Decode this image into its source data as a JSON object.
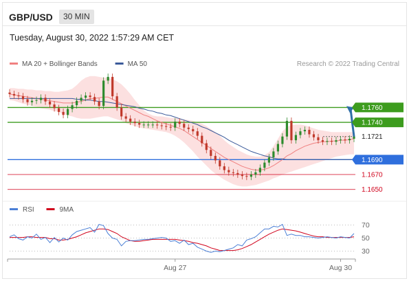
{
  "header": {
    "symbol": "GBP/USD",
    "timeframe": "30 MIN",
    "datetime": "Tuesday, August 30, 2022 1:57:29 AM CET"
  },
  "chart_data": {
    "type": "candlestick",
    "price_panel": {
      "legend": [
        {
          "name": "MA 20 + Bollinger Bands",
          "color": "#f08080"
        },
        {
          "name": "MA 50",
          "color": "#3a5a9a"
        }
      ],
      "credit": "Research © 2022 Trading Central",
      "ylim": [
        1.1635,
        1.1812
      ],
      "levels": [
        {
          "price": 1.176,
          "label": "1.1760",
          "kind": "resistance",
          "color": "#3d9c1e"
        },
        {
          "price": 1.174,
          "label": "1.1740",
          "kind": "resistance",
          "color": "#3d9c1e"
        },
        {
          "price": 1.1721,
          "label": "1.1721",
          "kind": "last",
          "color": "#222222"
        },
        {
          "price": 1.169,
          "label": "1.1690",
          "kind": "pivot",
          "color": "#2f6fdd"
        },
        {
          "price": 1.167,
          "label": "1.1670",
          "kind": "support",
          "color": "#d0021b"
        },
        {
          "price": 1.165,
          "label": "1.1650",
          "kind": "support",
          "color": "#d0021b"
        }
      ],
      "closes": [
        1.1778,
        1.1776,
        1.1775,
        1.1771,
        1.1767,
        1.1769,
        1.177,
        1.1773,
        1.1768,
        1.1764,
        1.1759,
        1.1754,
        1.175,
        1.1758,
        1.1763,
        1.1769,
        1.1773,
        1.1776,
        1.1774,
        1.1768,
        1.1762,
        1.1796,
        1.1801,
        1.1775,
        1.176,
        1.1748,
        1.1745,
        1.1741,
        1.1739,
        1.1737,
        1.1737,
        1.1737,
        1.1737,
        1.1736,
        1.1735,
        1.1734,
        1.1733,
        1.1741,
        1.1738,
        1.1733,
        1.1731,
        1.1728,
        1.1722,
        1.1712,
        1.1703,
        1.1695,
        1.1689,
        1.1681,
        1.1676,
        1.1673,
        1.1672,
        1.167,
        1.1668,
        1.1667,
        1.167,
        1.1673,
        1.1679,
        1.1686,
        1.1693,
        1.1701,
        1.1711,
        1.1721,
        1.1742,
        1.1716,
        1.1723,
        1.1728,
        1.173,
        1.1724,
        1.172,
        1.1716,
        1.1714,
        1.1715,
        1.1714,
        1.1716,
        1.1717,
        1.1716,
        1.1718,
        1.1721
      ],
      "ma20": [
        1.1778,
        1.1777,
        1.1776,
        1.1775,
        1.1774,
        1.1773,
        1.1772,
        1.1771,
        1.177,
        1.1769,
        1.1768,
        1.1767,
        1.1766,
        1.1766,
        1.1766,
        1.1767,
        1.1768,
        1.177,
        1.1772,
        1.1772,
        1.1773,
        1.1774,
        1.1774,
        1.1771,
        1.1768,
        1.1765,
        1.1762,
        1.1759,
        1.1756,
        1.1753,
        1.175,
        1.1748,
        1.1745,
        1.1742,
        1.174,
        1.1738,
        1.1736,
        1.1734,
        1.1732,
        1.1729,
        1.1725,
        1.1721,
        1.1717,
        1.1713,
        1.1709,
        1.1705,
        1.1701,
        1.1697,
        1.1693,
        1.169,
        1.1687,
        1.1684,
        1.1681,
        1.1679,
        1.1677,
        1.1676,
        1.1676,
        1.1677,
        1.1679,
        1.1682,
        1.1686,
        1.169,
        1.1695,
        1.1698,
        1.1702,
        1.1705,
        1.1708,
        1.171,
        1.1712,
        1.1713,
        1.1714,
        1.1714,
        1.1715,
        1.1715,
        1.1716,
        1.1716,
        1.1717,
        1.1718
      ],
      "bb_upper": [
        1.1786,
        1.1786,
        1.1785,
        1.1785,
        1.1784,
        1.1784,
        1.1783,
        1.1783,
        1.1782,
        1.1782,
        1.1781,
        1.1781,
        1.1782,
        1.1783,
        1.1785,
        1.179,
        1.1796,
        1.18,
        1.1802,
        1.1802,
        1.1801,
        1.18,
        1.18,
        1.1798,
        1.1795,
        1.1791,
        1.1785,
        1.1778,
        1.177,
        1.1763,
        1.1756,
        1.1752,
        1.1749,
        1.1748,
        1.1748,
        1.1747,
        1.1746,
        1.1746,
        1.1745,
        1.1744,
        1.1743,
        1.1742,
        1.174,
        1.1738,
        1.1735,
        1.1731,
        1.1727,
        1.1722,
        1.1716,
        1.1711,
        1.1707,
        1.1703,
        1.17,
        1.1697,
        1.1695,
        1.1694,
        1.1694,
        1.1696,
        1.17,
        1.1708,
        1.1718,
        1.1728,
        1.1734,
        1.1736,
        1.1737,
        1.1737,
        1.1736,
        1.1734,
        1.1732,
        1.173,
        1.1729,
        1.1728,
        1.1727,
        1.1727,
        1.1727,
        1.1727,
        1.1727,
        1.1727
      ],
      "bb_lower": [
        1.177,
        1.1769,
        1.1767,
        1.1765,
        1.1764,
        1.1762,
        1.1761,
        1.1759,
        1.1758,
        1.1757,
        1.1755,
        1.1754,
        1.1751,
        1.1749,
        1.1748,
        1.1746,
        1.1745,
        1.1745,
        1.1745,
        1.1746,
        1.1747,
        1.1748,
        1.1748,
        1.1746,
        1.1744,
        1.1742,
        1.1739,
        1.1737,
        1.1735,
        1.1733,
        1.1732,
        1.1731,
        1.173,
        1.1729,
        1.1728,
        1.1727,
        1.1725,
        1.1722,
        1.1718,
        1.1713,
        1.1707,
        1.1701,
        1.1694,
        1.1688,
        1.1682,
        1.1676,
        1.1671,
        1.1667,
        1.1663,
        1.166,
        1.1657,
        1.1655,
        1.1654,
        1.1654,
        1.1655,
        1.1656,
        1.1658,
        1.166,
        1.1662,
        1.1665,
        1.1667,
        1.167,
        1.1672,
        1.1674,
        1.1676,
        1.1678,
        1.168,
        1.1682,
        1.1684,
        1.1686,
        1.1688,
        1.169,
        1.1692,
        1.1694,
        1.1695,
        1.1696,
        1.1697,
        1.1697
      ],
      "ma50": [
        1.1772,
        1.1772,
        1.1772,
        1.1772,
        1.1772,
        1.1772,
        1.1772,
        1.1772,
        1.1772,
        1.1772,
        1.1772,
        1.1772,
        1.1772,
        1.1772,
        1.1772,
        1.1771,
        1.1771,
        1.177,
        1.177,
        1.1769,
        1.1768,
        1.1768,
        1.1767,
        1.1766,
        1.1765,
        1.1764,
        1.1763,
        1.1762,
        1.1761,
        1.1759,
        1.1758,
        1.1756,
        1.1755,
        1.1753,
        1.1752,
        1.175,
        1.1749,
        1.1747,
        1.1745,
        1.1743,
        1.1741,
        1.1739,
        1.1737,
        1.1734,
        1.1732,
        1.1729,
        1.1726,
        1.1723,
        1.172,
        1.1716,
        1.1713,
        1.171,
        1.1707,
        1.1704,
        1.1701,
        1.1699,
        1.1697,
        1.1695,
        1.1694,
        1.1692,
        1.1691,
        1.1691,
        1.169,
        1.169,
        1.169,
        1.169,
        1.169,
        1.169,
        1.169,
        1.169,
        1.169,
        1.169,
        1.169,
        1.169,
        1.169,
        1.169,
        1.169,
        1.169
      ],
      "projection": {
        "from_index": 77,
        "to_price": 1.176,
        "color": "#2f6fa8"
      }
    },
    "rsi_panel": {
      "legend": [
        {
          "name": "RSI",
          "color": "#4a7fd6"
        },
        {
          "name": "9MA",
          "color": "#d0021b"
        }
      ],
      "ylim": [
        20,
        80
      ],
      "yticks": [
        70,
        50,
        30
      ],
      "guides": [
        70,
        50,
        30
      ],
      "rsi": [
        52,
        55,
        49,
        47,
        52,
        50,
        56,
        48,
        51,
        43,
        51,
        44,
        50,
        47,
        55,
        60,
        62,
        64,
        66,
        59,
        71,
        69,
        57,
        50,
        48,
        38,
        45,
        46,
        46,
        47,
        48,
        48,
        49,
        50,
        51,
        50,
        45,
        46,
        42,
        47,
        40,
        42,
        36,
        33,
        30,
        28,
        30,
        29,
        31,
        33,
        35,
        40,
        38,
        47,
        49,
        52,
        58,
        64,
        64,
        68,
        67,
        71,
        54,
        56,
        54,
        54,
        52,
        52,
        51,
        50,
        51,
        52,
        51,
        50,
        52,
        51,
        50,
        57
      ],
      "ma9": [
        51,
        51,
        51,
        51,
        52,
        52,
        51,
        51,
        51,
        49,
        49,
        47,
        47,
        48,
        50,
        52,
        55,
        58,
        60,
        62,
        64,
        64,
        63,
        60,
        57,
        52,
        49,
        46,
        45,
        45,
        46,
        47,
        48,
        48,
        48,
        48,
        48,
        48,
        47,
        46,
        45,
        43,
        42,
        40,
        38,
        35,
        33,
        31,
        31,
        31,
        31,
        32,
        34,
        37,
        40,
        44,
        48,
        52,
        56,
        59,
        62,
        64,
        63,
        62,
        61,
        59,
        57,
        55,
        53,
        52,
        52,
        51,
        51,
        51,
        51,
        51,
        51,
        52
      ]
    },
    "x_axis": {
      "ticks": [
        {
          "label": "Aug 27",
          "index": 37
        },
        {
          "label": "Aug 30",
          "index": 74
        }
      ]
    }
  }
}
